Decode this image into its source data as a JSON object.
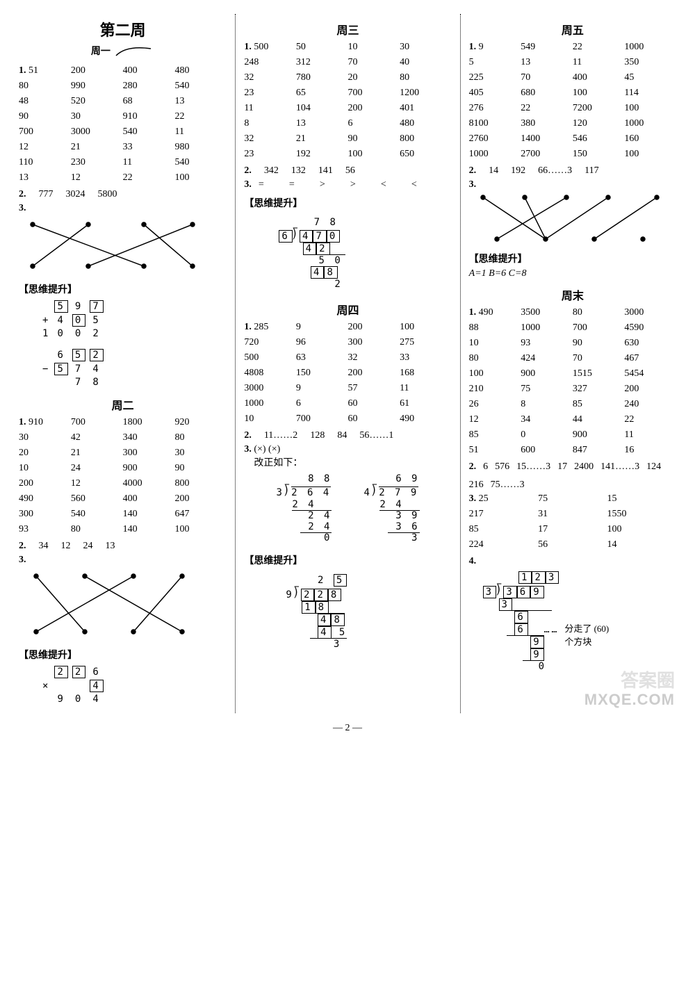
{
  "page_number_label": "— 2 —",
  "watermark_text_1": "答案圈",
  "watermark_text_2": "MXQE.COM",
  "labels": {
    "week_title": "第二周",
    "mon": "周一",
    "tue": "周二",
    "wed": "周三",
    "thu": "周四",
    "fri": "周五",
    "weekend": "周末",
    "siwei": "【思维提升】",
    "gaizheng": "改正如下：",
    "fenzou": "分走了 (60)",
    "gefangkuai": "个方块"
  },
  "mon": {
    "q1": [
      "51",
      "200",
      "400",
      "480",
      "80",
      "990",
      "280",
      "540",
      "48",
      "520",
      "68",
      "13",
      "90",
      "30",
      "910",
      "22",
      "700",
      "3000",
      "540",
      "11",
      "12",
      "21",
      "33",
      "980",
      "110",
      "230",
      "11",
      "540",
      "13",
      "12",
      "22",
      "100"
    ],
    "q2": [
      "777",
      "3024",
      "5800"
    ]
  },
  "mon_calc_add": {
    "r1": [
      "",
      "5",
      "9",
      "7"
    ],
    "r2": [
      "+",
      "",
      "4",
      "0",
      "5"
    ],
    "res": [
      "1",
      "0",
      "0",
      "2"
    ]
  },
  "mon_calc_sub": {
    "r1": [
      "",
      "6",
      "5",
      "2"
    ],
    "r2": [
      "−",
      "5",
      "7",
      "4"
    ],
    "res": [
      "",
      "",
      "7",
      "8"
    ]
  },
  "tue": {
    "q1": [
      "910",
      "700",
      "1800",
      "920",
      "30",
      "42",
      "340",
      "80",
      "20",
      "21",
      "300",
      "30",
      "10",
      "24",
      "900",
      "90",
      "200",
      "12",
      "4000",
      "800",
      "490",
      "560",
      "400",
      "200",
      "300",
      "540",
      "140",
      "647",
      "93",
      "80",
      "140",
      "100"
    ],
    "q2": [
      "34",
      "12",
      "24",
      "13"
    ]
  },
  "tue_calc": {
    "r1": [
      "",
      "2",
      "2",
      "6"
    ],
    "r2": [
      "×",
      "",
      "",
      "4"
    ],
    "res": [
      "9",
      "0",
      "4"
    ]
  },
  "wed": {
    "q1": [
      "500",
      "50",
      "10",
      "30",
      "248",
      "312",
      "70",
      "40",
      "32",
      "780",
      "20",
      "80",
      "23",
      "65",
      "700",
      "1200",
      "11",
      "104",
      "200",
      "401",
      "8",
      "13",
      "6",
      "480",
      "32",
      "21",
      "90",
      "800",
      "23",
      "192",
      "100",
      "650"
    ],
    "q2": [
      "342",
      "132",
      "141",
      "56"
    ],
    "q3": [
      "=",
      "=",
      ">",
      ">",
      "<",
      "<"
    ]
  },
  "wed_div": {
    "quotient": [
      "7",
      "8"
    ],
    "divisor": "6",
    "dividend": [
      "4",
      "7",
      "0"
    ],
    "s1": [
      "4",
      "2"
    ],
    "s2": [
      "5",
      "0"
    ],
    "s3": [
      "4",
      "8"
    ],
    "rem": "2"
  },
  "thu": {
    "q1": [
      "285",
      "9",
      "200",
      "100",
      "720",
      "96",
      "300",
      "275",
      "500",
      "63",
      "32",
      "33",
      "4808",
      "150",
      "200",
      "168",
      "3000",
      "9",
      "57",
      "11",
      "1000",
      "6",
      "60",
      "61",
      "10",
      "700",
      "60",
      "490"
    ],
    "q2": [
      "11……2",
      "128",
      "84",
      "56……1"
    ],
    "q3": "(×)  (×)"
  },
  "thu_div1": {
    "q": [
      "8",
      "8"
    ],
    "dvs": "3",
    "dvd": [
      "2",
      "6",
      "4"
    ],
    "l": [
      "2",
      "4",
      "",
      "2",
      "4",
      "",
      "2",
      "4",
      "0"
    ]
  },
  "thu_div2": {
    "q": [
      "6",
      "9"
    ],
    "dvs": "4",
    "dvd": [
      "2",
      "7",
      "9"
    ],
    "l": [
      "2",
      "4",
      "",
      "3",
      "9",
      "",
      "3",
      "6",
      "3"
    ]
  },
  "thu_siwei": {
    "q": [
      "2",
      "5"
    ],
    "dvs": "9",
    "dvd": [
      "2",
      "2",
      "8"
    ],
    "s1": [
      "1",
      "8"
    ],
    "s2": [
      "4",
      "8"
    ],
    "s3": [
      "4",
      "5"
    ],
    "rem": "3"
  },
  "fri": {
    "q1": [
      "9",
      "549",
      "22",
      "1000",
      "5",
      "13",
      "11",
      "350",
      "225",
      "70",
      "400",
      "45",
      "405",
      "680",
      "100",
      "114",
      "276",
      "22",
      "7200",
      "100",
      "8100",
      "380",
      "120",
      "1000",
      "2760",
      "1400",
      "546",
      "160",
      "1000",
      "2700",
      "150",
      "100"
    ],
    "q2": [
      "14",
      "192",
      "66……3",
      "117"
    ],
    "siwei": "A=1   B=6   C=8"
  },
  "weekend": {
    "q1": [
      "490",
      "3500",
      "80",
      "3000",
      "88",
      "1000",
      "700",
      "4590",
      "10",
      "93",
      "90",
      "630",
      "80",
      "424",
      "70",
      "467",
      "100",
      "900",
      "1515",
      "5454",
      "210",
      "75",
      "327",
      "200",
      "26",
      "8",
      "85",
      "240",
      "12",
      "34",
      "44",
      "22",
      "85",
      "0",
      "900",
      "11",
      "51",
      "600",
      "847",
      "16"
    ],
    "q2": [
      "6",
      "576",
      "15……3",
      "17",
      "2400",
      "141……3",
      "124",
      "216",
      "75……3"
    ],
    "q3": [
      "25",
      "75",
      "15",
      "217",
      "31",
      "1550",
      "85",
      "17",
      "100",
      "224",
      "56",
      "14"
    ]
  },
  "weekend_div": {
    "q": [
      "1",
      "2",
      "3"
    ],
    "dvs": "3",
    "dvd": [
      "3",
      "6",
      "9"
    ],
    "rows": [
      "3",
      "6",
      "6",
      "9",
      "9",
      "0"
    ]
  }
}
